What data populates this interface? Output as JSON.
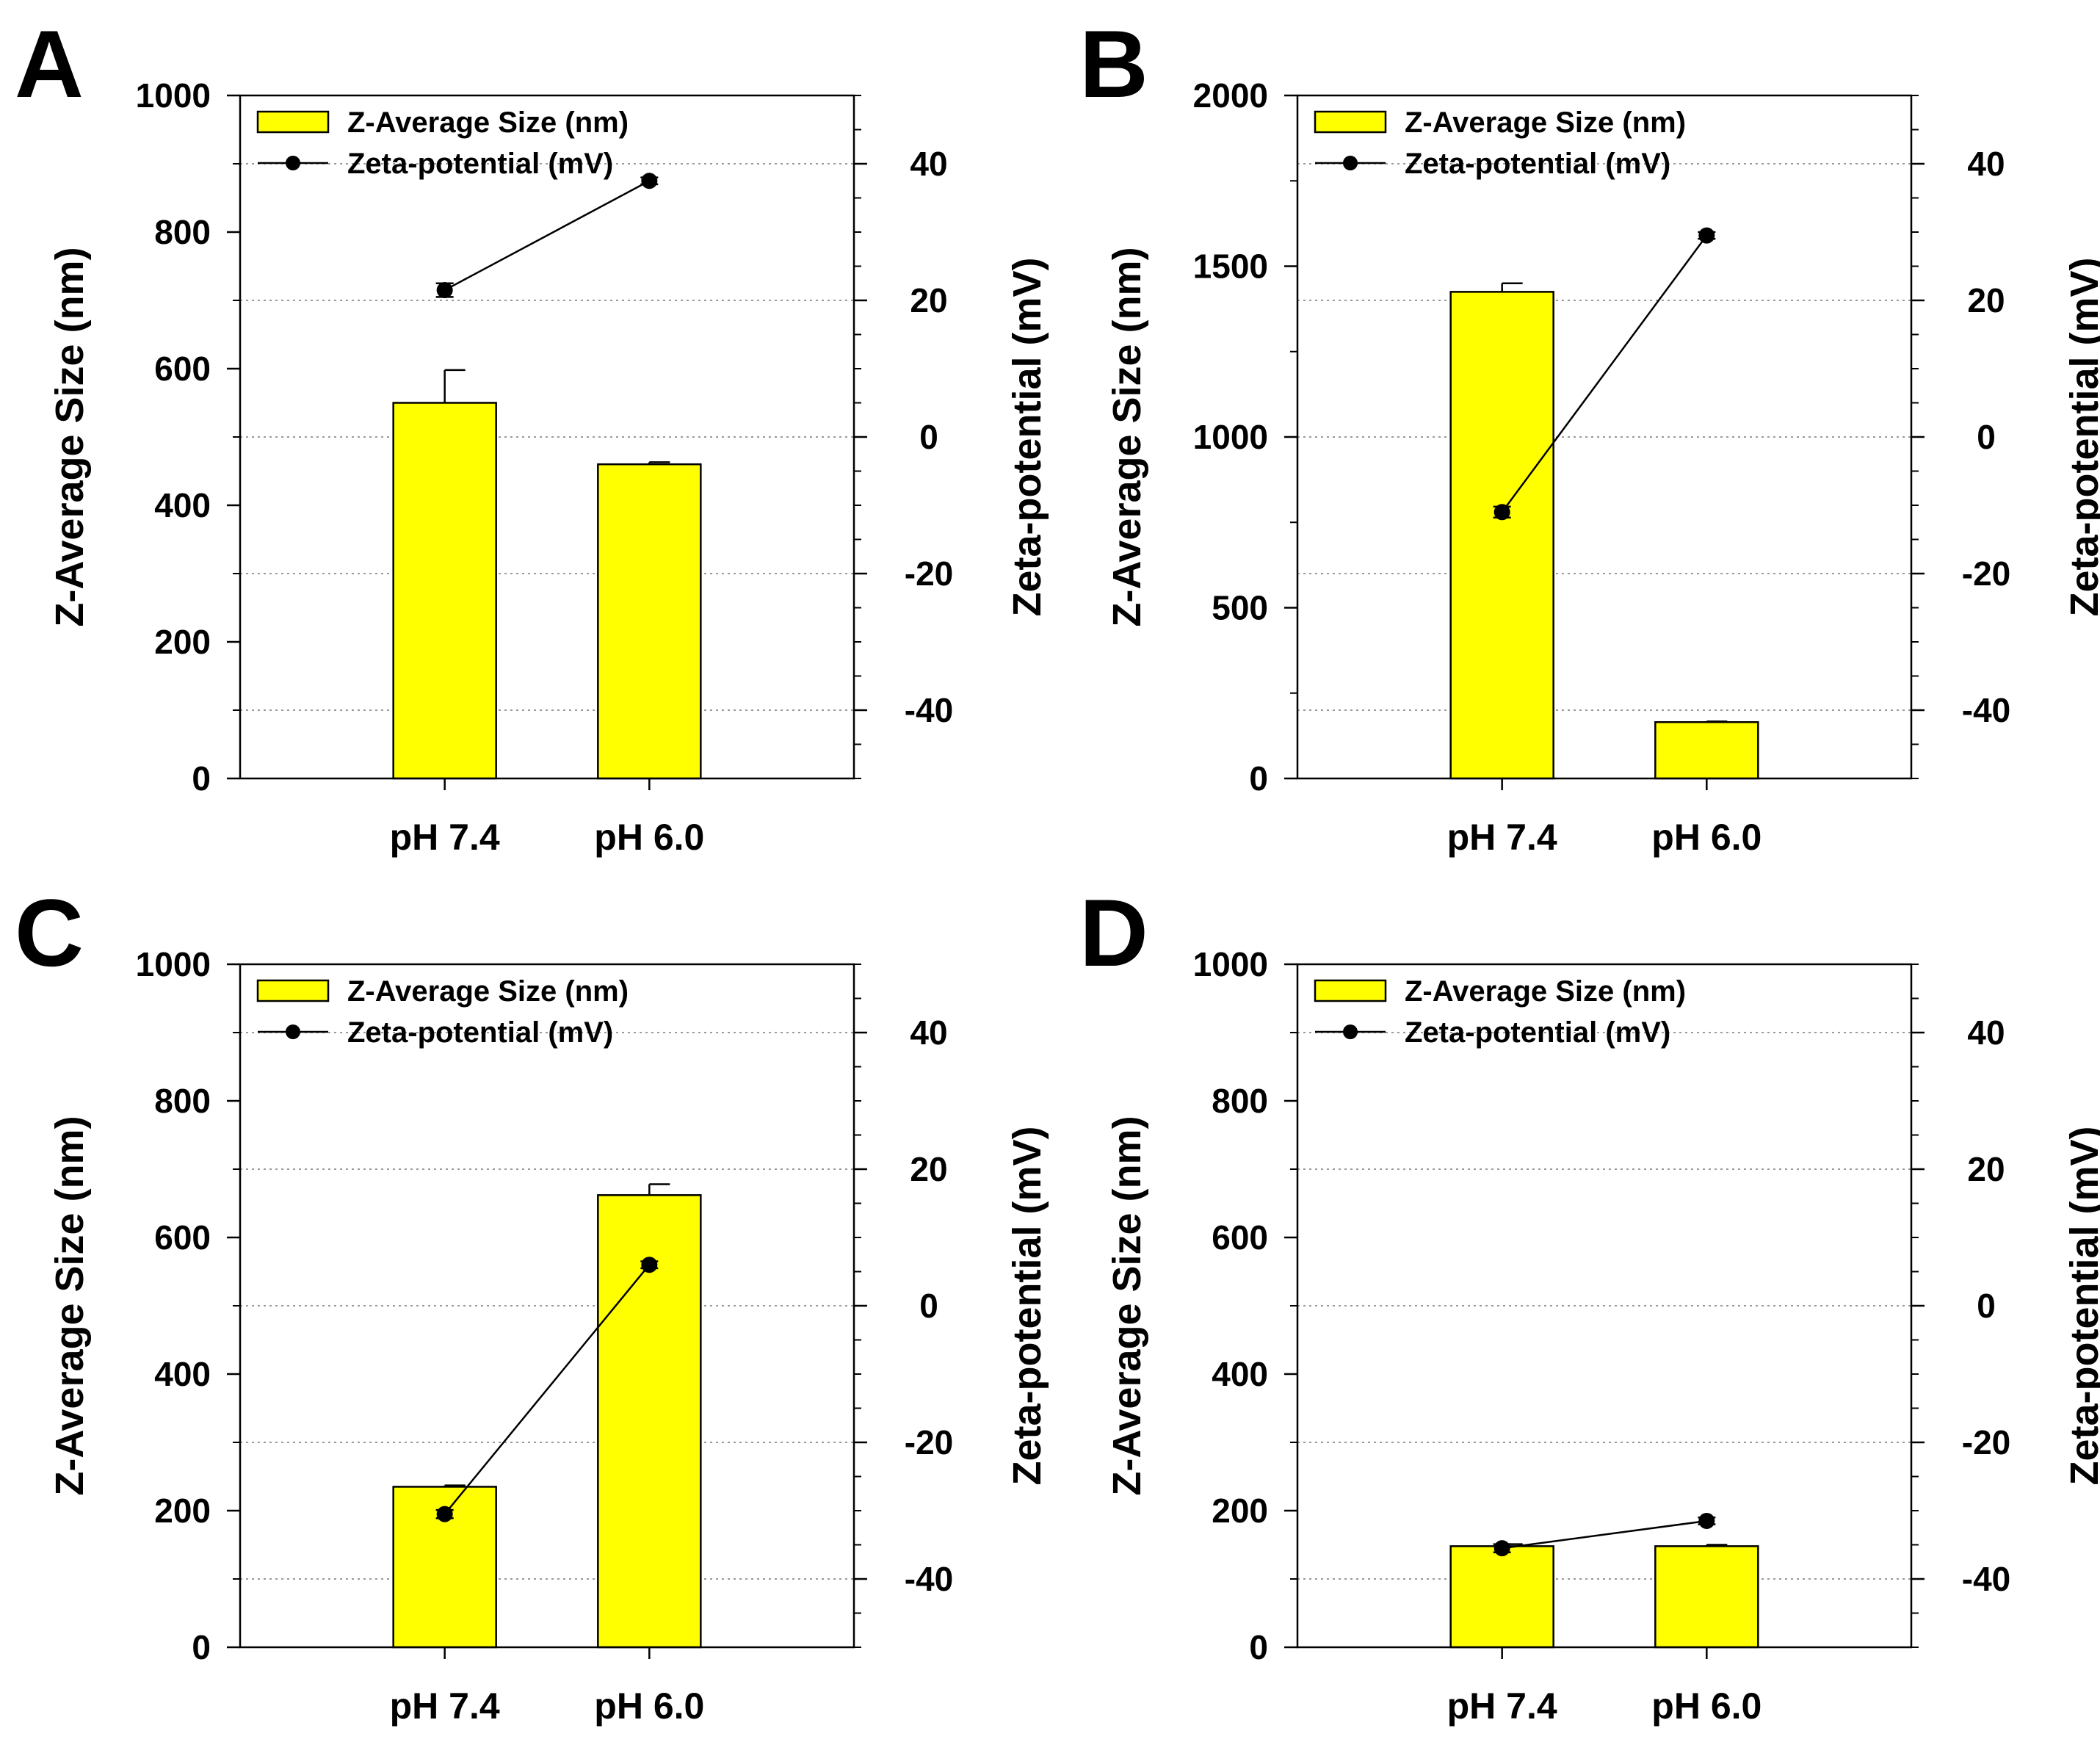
{
  "figure": {
    "style": {
      "bar_fill": "#ffff00",
      "bar_stroke": "#000000",
      "line_color": "#000000",
      "grid_color": "#9a9a9a",
      "axis_color": "#000000"
    }
  },
  "chart_data": [
    {
      "panel": "A",
      "type": "bar",
      "categories": [
        "pH 7.4",
        "pH 6.0"
      ],
      "ylabel": "Z-Average Size (nm)",
      "y2label": "Zeta-potential (mV)",
      "ylim": [
        0,
        1000
      ],
      "yticks": [
        0,
        200,
        400,
        600,
        800,
        1000
      ],
      "y2lim": [
        -50,
        50
      ],
      "y2ticks": [
        -40,
        -20,
        0,
        20,
        40
      ],
      "grid": true,
      "legend": {
        "position": "top-left",
        "entries": [
          "Z-Average Size (nm)",
          "Zeta-potential (mV)"
        ]
      },
      "series": [
        {
          "name": "Z-Average Size (nm)",
          "kind": "bar",
          "axis": "left",
          "values": [
            550,
            460
          ],
          "errors": [
            48,
            3
          ]
        },
        {
          "name": "Zeta-potential (mV)",
          "kind": "line",
          "axis": "right",
          "values": [
            21.5,
            37.5
          ],
          "errors": [
            1.0,
            0.5
          ]
        }
      ]
    },
    {
      "panel": "B",
      "type": "bar",
      "categories": [
        "pH 7.4",
        "pH 6.0"
      ],
      "ylabel": "Z-Average Size (nm)",
      "y2label": "Zeta-potential (mV)",
      "ylim": [
        0,
        2000
      ],
      "yticks": [
        0,
        500,
        1000,
        1500,
        2000
      ],
      "y2lim": [
        -50,
        50
      ],
      "y2ticks": [
        -40,
        -20,
        0,
        20,
        40
      ],
      "grid": true,
      "legend": {
        "position": "top-left",
        "entries": [
          "Z-Average Size (nm)",
          "Zeta-potential (mV)"
        ]
      },
      "series": [
        {
          "name": "Z-Average Size (nm)",
          "kind": "bar",
          "axis": "left",
          "values": [
            1425,
            165
          ],
          "errors": [
            25,
            2
          ]
        },
        {
          "name": "Zeta-potential (mV)",
          "kind": "line",
          "axis": "right",
          "values": [
            -11,
            29.5
          ],
          "errors": [
            0.8,
            0.5
          ]
        }
      ]
    },
    {
      "panel": "C",
      "type": "bar",
      "categories": [
        "pH 7.4",
        "pH 6.0"
      ],
      "ylabel": "Z-Average Size (nm)",
      "y2label": "Zeta-potential (mV)",
      "ylim": [
        0,
        1000
      ],
      "yticks": [
        0,
        200,
        400,
        600,
        800,
        1000
      ],
      "y2lim": [
        -50,
        50
      ],
      "y2ticks": [
        -40,
        -20,
        0,
        20,
        40
      ],
      "grid": true,
      "legend": {
        "position": "top-left",
        "entries": [
          "Z-Average Size (nm)",
          "Zeta-potential (mV)"
        ]
      },
      "series": [
        {
          "name": "Z-Average Size (nm)",
          "kind": "bar",
          "axis": "left",
          "values": [
            235,
            662
          ],
          "errors": [
            2,
            16
          ]
        },
        {
          "name": "Zeta-potential (mV)",
          "kind": "line",
          "axis": "right",
          "values": [
            -30.5,
            6
          ],
          "errors": [
            0.6,
            0.5
          ]
        }
      ]
    },
    {
      "panel": "D",
      "type": "bar",
      "categories": [
        "pH 7.4",
        "pH 6.0"
      ],
      "ylabel": "Z-Average Size (nm)",
      "y2label": "Zeta-potential (mV)",
      "ylim": [
        0,
        1000
      ],
      "yticks": [
        0,
        200,
        400,
        600,
        800,
        1000
      ],
      "y2lim": [
        -50,
        50
      ],
      "y2ticks": [
        -40,
        -20,
        0,
        20,
        40
      ],
      "grid": true,
      "legend": {
        "position": "top-left",
        "entries": [
          "Z-Average Size (nm)",
          "Zeta-potential (mV)"
        ]
      },
      "series": [
        {
          "name": "Z-Average Size (nm)",
          "kind": "bar",
          "axis": "left",
          "values": [
            148,
            148
          ],
          "errors": [
            3,
            2
          ]
        },
        {
          "name": "Zeta-potential (mV)",
          "kind": "line",
          "axis": "right",
          "values": [
            -35.5,
            -31.5
          ],
          "errors": [
            0.6,
            0.5
          ]
        }
      ]
    }
  ]
}
